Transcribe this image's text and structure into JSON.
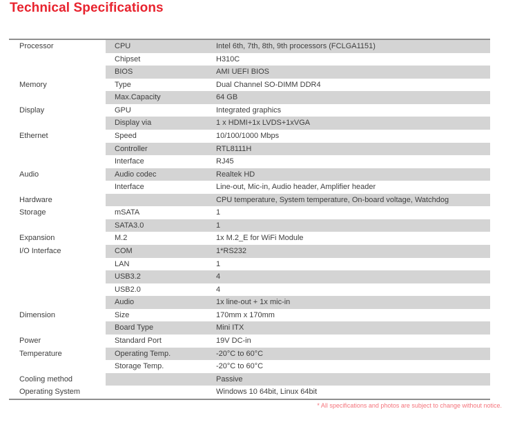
{
  "page": {
    "title": "Technical Specifications",
    "footnote": "* All specifications and photos are subject to change without notice."
  },
  "colors": {
    "title_red": "#e8232e",
    "footnote_red": "#f4747c",
    "row_shade_gray": "#d4d4d4",
    "table_border_gray": "#8f8f8f",
    "table_text_gray": "#3e3e3e"
  },
  "table": {
    "rows": [
      {
        "category": "Processor",
        "label": "CPU",
        "value": "Intel 6th, 7th, 8th, 9th processors (FCLGA1151)",
        "shaded": true
      },
      {
        "category": "",
        "label": "Chipset",
        "value": "H310C",
        "shaded": false
      },
      {
        "category": "",
        "label": "BIOS",
        "value": "AMI UEFI BIOS",
        "shaded": true
      },
      {
        "category": "Memory",
        "label": "Type",
        "value": "Dual Channel SO-DIMM DDR4",
        "shaded": false
      },
      {
        "category": "",
        "label": "Max.Capacity",
        "value": "64 GB",
        "shaded": true
      },
      {
        "category": "Display",
        "label": "GPU",
        "value": "Integrated graphics",
        "shaded": false
      },
      {
        "category": "",
        "label": "Display via",
        "value": "1 x HDMI+1x LVDS+1xVGA",
        "shaded": true
      },
      {
        "category": "Ethernet",
        "label": "Speed",
        "value": "10/100/1000 Mbps",
        "shaded": false
      },
      {
        "category": "",
        "label": "Controller",
        "value": "RTL8111H",
        "shaded": true
      },
      {
        "category": "",
        "label": "Interface",
        "value": "RJ45",
        "shaded": false
      },
      {
        "category": "Audio",
        "label": "Audio codec",
        "value": "Realtek HD",
        "shaded": true
      },
      {
        "category": "",
        "label": "Interface",
        "value": "Line-out, Mic-in, Audio header, Amplifier header",
        "shaded": false
      },
      {
        "category": "Hardware",
        "label": "",
        "value": "CPU temperature, System temperature, On-board voltage, Watchdog",
        "shaded": true
      },
      {
        "category": "Storage",
        "label": "mSATA",
        "value": "1",
        "shaded": false
      },
      {
        "category": "",
        "label": "SATA3.0",
        "value": "1",
        "shaded": true
      },
      {
        "category": "Expansion",
        "label": "M.2",
        "value": "1x M.2_E for WiFi Module",
        "shaded": false
      },
      {
        "category": "I/O Interface",
        "label": "COM",
        "value": "1*RS232",
        "shaded": true
      },
      {
        "category": "",
        "label": "LAN",
        "value": "1",
        "shaded": false
      },
      {
        "category": "",
        "label": "USB3.2",
        "value": "4",
        "shaded": true
      },
      {
        "category": "",
        "label": "USB2.0",
        "value": "4",
        "shaded": false
      },
      {
        "category": "",
        "label": "Audio",
        "value": "1x line-out + 1x mic-in",
        "shaded": true
      },
      {
        "category": "Dimension",
        "label": "Size",
        "value": "170mm x 170mm",
        "shaded": false
      },
      {
        "category": "",
        "label": "Board Type",
        "value": "Mini ITX",
        "shaded": true
      },
      {
        "category": "Power",
        "label": "Standard Port",
        "value": "19V DC-in",
        "shaded": false
      },
      {
        "category": "Temperature",
        "label": "Operating Temp.",
        "value": "-20°C to 60°C",
        "shaded": true
      },
      {
        "category": "",
        "label": "Storage Temp.",
        "value": "-20°C to 60°C",
        "shaded": false
      },
      {
        "category": "Cooling method",
        "label": "",
        "value": "Passive",
        "shaded": true
      },
      {
        "category": "Operating System",
        "label": "",
        "value": "Windows 10 64bit, Linux 64bit",
        "shaded": false
      }
    ]
  }
}
